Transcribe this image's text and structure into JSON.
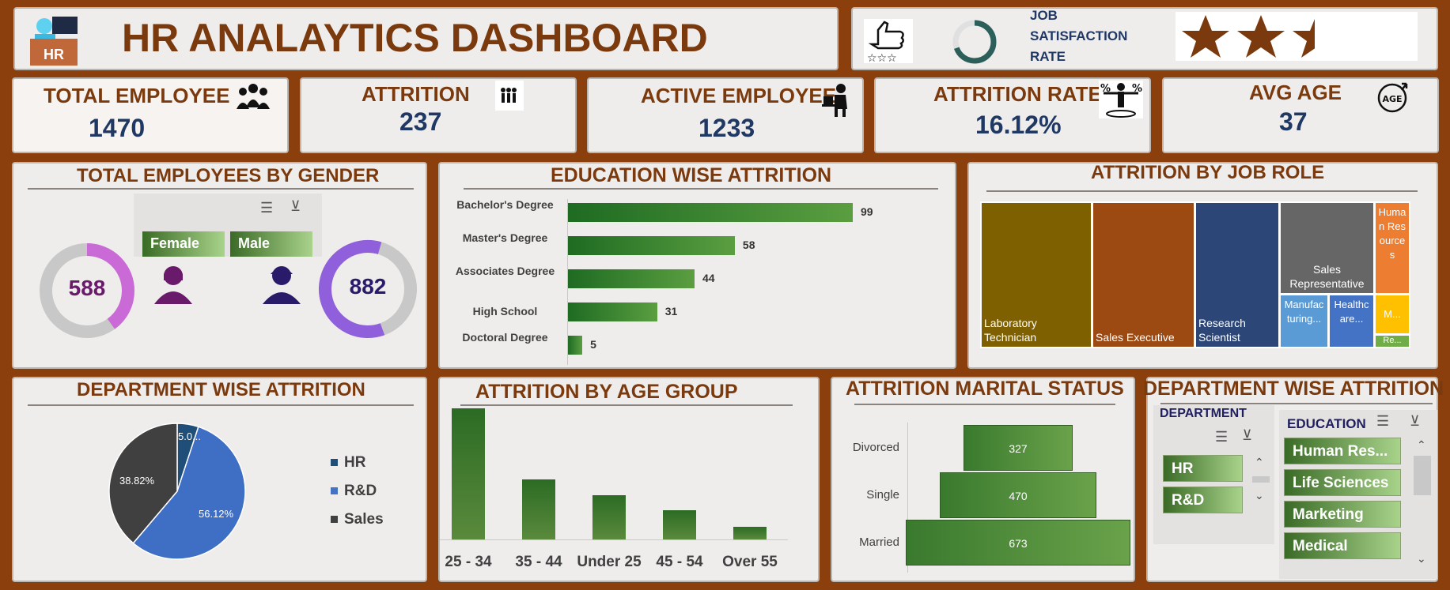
{
  "header": {
    "title": "HR ANALAYTICS DASHBOARD",
    "logo_text": "HR",
    "satisfaction_label": [
      "JOB",
      "SATISFACTION",
      "RATE"
    ],
    "stars_filled": 2.4,
    "stars_total": 3
  },
  "kpis": [
    {
      "label": "TOTAL EMPLOYEE",
      "value": "1470",
      "icon": "people-group-icon"
    },
    {
      "label": "ATTRITION",
      "value": "237",
      "icon": "people-leaving-icon"
    },
    {
      "label": "ACTIVE EMPLOYEE",
      "value": "1233",
      "icon": "person-at-desk-icon"
    },
    {
      "label": "ATTRITION RATE",
      "value": "16.12%",
      "icon": "percent-balance-icon"
    },
    {
      "label": "AVG AGE",
      "value": "37",
      "icon": "age-arrow-icon"
    }
  ],
  "gender": {
    "title": "TOTAL EMPLOYEES BY GENDER",
    "female_label": "Female",
    "male_label": "Male",
    "female_value": "588",
    "male_value": "882",
    "female_fraction": 0.4,
    "male_fraction": 0.6
  },
  "education": {
    "title": "EDUCATION WISE ATTRITION",
    "items": [
      {
        "label": "Bachelor's Degree",
        "value": "99"
      },
      {
        "label": "Master's Degree",
        "value": "58"
      },
      {
        "label": "Associates Degree",
        "value": "44"
      },
      {
        "label": "High School",
        "value": "31"
      },
      {
        "label": "Doctoral Degree",
        "value": "5"
      }
    ]
  },
  "job_role": {
    "title": "ATTRITION BY JOB ROLE",
    "cells": [
      {
        "label": "Laboratory Technician",
        "color": "#7f6000"
      },
      {
        "label": "Sales Executive",
        "color": "#9c4a12"
      },
      {
        "label": "Research Scientist",
        "color": "#2c4677"
      },
      {
        "label": "Sales Representative",
        "color": "#666666"
      },
      {
        "label": "Human Resources",
        "color": "#ed7d31"
      },
      {
        "label": "Manufacturing...",
        "color": "#5b9bd5"
      },
      {
        "label": "Healthcare...",
        "color": "#4472c4"
      },
      {
        "label": "M...",
        "color": "#ffc000"
      },
      {
        "label": "Re...",
        "color": "#70ad47"
      }
    ]
  },
  "department": {
    "title": "DEPARTMENT WISE ATTRITION",
    "legend": [
      "HR",
      "R&D",
      "Sales"
    ],
    "colors": [
      "#1f4e79",
      "#4472c4",
      "#404040"
    ],
    "slice_labels": [
      "5.0...",
      "56.12%",
      "38.82%"
    ]
  },
  "chart_data": [
    {
      "type": "pie",
      "title": "DEPARTMENT WISE ATTRITION",
      "categories": [
        "HR",
        "R&D",
        "Sales"
      ],
      "values": [
        5.06,
        56.12,
        38.82
      ]
    },
    {
      "type": "bar",
      "title": "ATTRITION BY AGE GROUP",
      "categories": [
        "25 - 34",
        "35 - 44",
        "Under 25",
        "45 - 54",
        "Over 55"
      ],
      "values": [
        112,
        51,
        38,
        25,
        11
      ]
    },
    {
      "type": "bar",
      "title": "EDUCATION WISE ATTRITION",
      "categories": [
        "Bachelor's Degree",
        "Master's Degree",
        "Associates Degree",
        "High School",
        "Doctoral Degree"
      ],
      "values": [
        99,
        58,
        44,
        31,
        5
      ]
    },
    {
      "type": "bar",
      "title": "ATTRITION MARITAL STATUS",
      "categories": [
        "Divorced",
        "Single",
        "Married"
      ],
      "values": [
        327,
        470,
        673
      ]
    }
  ],
  "age_group": {
    "title": "ATTRITION BY AGE GROUP",
    "labels": [
      "25 - 34",
      "35 - 44",
      "Under 25",
      "45 - 54",
      "Over 55"
    ]
  },
  "marital": {
    "title": "ATTRITION MARITAL STATUS",
    "items": [
      {
        "label": "Divorced",
        "value": "327"
      },
      {
        "label": "Single",
        "value": "470"
      },
      {
        "label": "Married",
        "value": "673"
      }
    ]
  },
  "slicer": {
    "title": "DEPARTMENT WISE ATTRITION",
    "dept_header": "DEPARTMENT",
    "dept_items": [
      "HR",
      "R&D"
    ],
    "edu_header": "EDUCATION",
    "edu_items": [
      "Human Res...",
      "Life Sciences",
      "Marketing",
      "Medical"
    ]
  }
}
